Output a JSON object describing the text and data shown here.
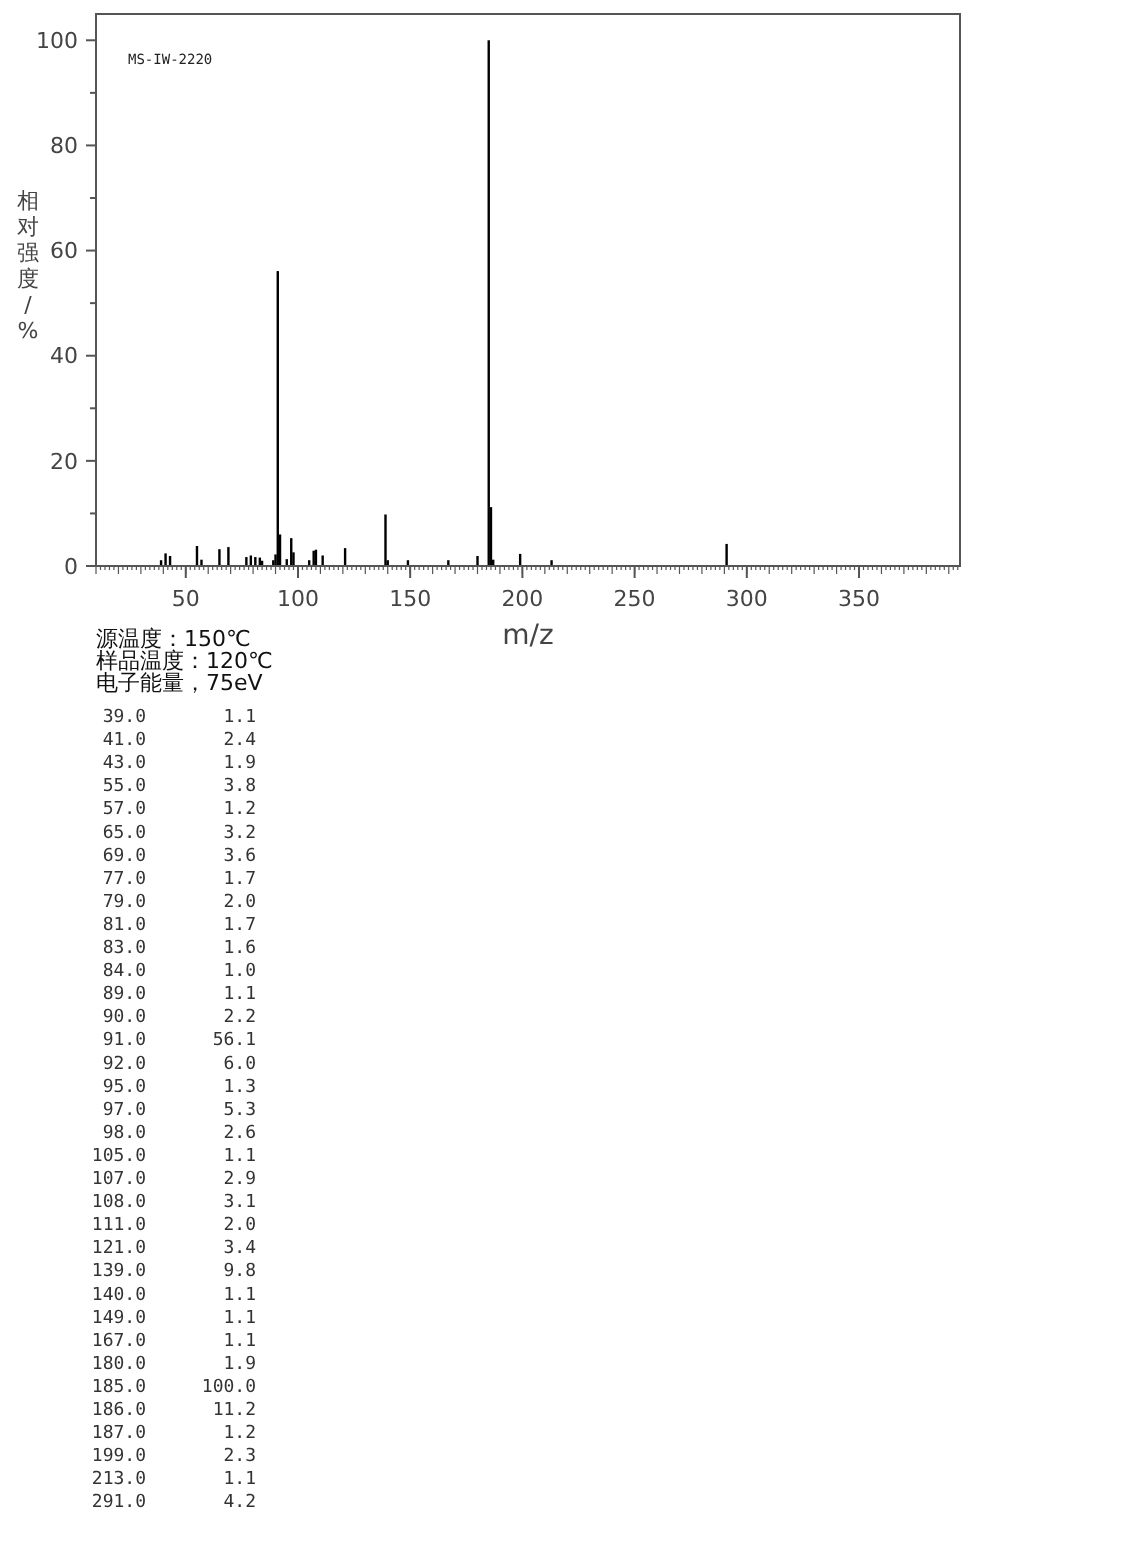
{
  "chart_data": [
    {
      "type": "bar",
      "xlabel": "m/z",
      "ylabel": "相对强度/%",
      "x": [
        39,
        41,
        43,
        55,
        57,
        65,
        69,
        77,
        79,
        81,
        83,
        84,
        89,
        90,
        91,
        92,
        95,
        97,
        98,
        105,
        107,
        108,
        111,
        121,
        139,
        140,
        149,
        167,
        180,
        185,
        186,
        187,
        199,
        213,
        291
      ],
      "values": [
        1.1,
        2.4,
        1.9,
        3.8,
        1.2,
        3.2,
        3.6,
        1.7,
        2.0,
        1.7,
        1.6,
        1.0,
        1.1,
        2.2,
        56.1,
        6.0,
        1.3,
        5.3,
        2.6,
        1.1,
        2.9,
        3.1,
        2.0,
        3.4,
        9.8,
        1.1,
        1.1,
        1.1,
        1.9,
        100.0,
        11.2,
        1.2,
        2.3,
        1.1,
        4.2
      ],
      "color": "#000000",
      "xlim": [
        10,
        395
      ],
      "ylim": [
        0,
        105
      ],
      "xticks": [
        50,
        100,
        150,
        200,
        250,
        300,
        350
      ],
      "yticks": [
        0,
        {
          "value": 10,
          "label": null
        },
        20,
        {
          "value": 30,
          "label": null
        },
        40,
        {
          "value": 50,
          "label": null
        },
        60,
        {
          "value": 70,
          "label": null
        },
        80,
        {
          "value": 90,
          "label": null
        },
        100
      ],
      "grid": false,
      "annotations": [
        "MS-IW-2220",
        "源温度：150℃",
        "样品温度：120℃",
        "电子能量，75eV"
      ]
    },
    {
      "type": "other",
      "annotations": [
        "39.0",
        "1.1",
        "41.0",
        "2.4",
        "43.0",
        "1.9",
        "55.0",
        "3.8",
        "57.0",
        "1.2",
        "65.0",
        "3.2",
        "69.0",
        "3.6",
        "77.0",
        "1.7",
        "79.0",
        "2.0",
        "81.0",
        "1.7",
        "83.0",
        "1.6",
        "84.0",
        "1.0",
        "89.0",
        "1.1",
        "90.0",
        "2.2",
        "91.0",
        "56.1",
        "92.0",
        "6.0",
        "95.0",
        "1.3",
        "97.0",
        "5.3",
        "98.0",
        "2.6",
        "105.0",
        "1.1",
        "107.0",
        "2.9",
        "108.0",
        "3.1",
        "111.0",
        "2.0",
        "121.0",
        "3.4",
        "139.0",
        "9.8",
        "140.0",
        "1.1",
        "149.0",
        "1.1",
        "167.0",
        "1.1",
        "180.0",
        "1.9",
        "185.0",
        "100.0",
        "186.0",
        "11.2",
        "187.0",
        "1.2",
        "199.0",
        "2.3",
        "213.0",
        "1.1",
        "291.0",
        "4.2"
      ]
    }
  ]
}
